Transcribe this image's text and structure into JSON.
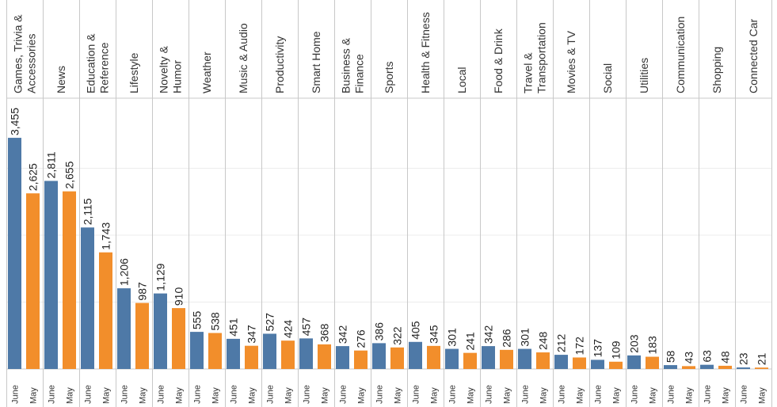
{
  "chart_data": {
    "type": "bar",
    "categories": [
      "Games, Trivia & Accessories",
      "News",
      "Education & Reference",
      "Lifestyle",
      "Novelty & Humor",
      "Weather",
      "Music & Audio",
      "Productivity",
      "Smart Home",
      "Business & Finance",
      "Sports",
      "Health & Fitness",
      "Local",
      "Food & Drink",
      "Travel & Transportation",
      "Movies & TV",
      "Social",
      "Utilities",
      "Communication",
      "Shopping",
      "Connected Car"
    ],
    "category_label_lines": [
      [
        "Games, Trivia &",
        "Accessories"
      ],
      [
        "News"
      ],
      [
        "Education &",
        "Reference"
      ],
      [
        "Lifestyle"
      ],
      [
        "Novelty &",
        "Humor"
      ],
      [
        "Weather"
      ],
      [
        "Music & Audio"
      ],
      [
        "Productivity"
      ],
      [
        "Smart Home"
      ],
      [
        "Business &",
        "Finance"
      ],
      [
        "Sports"
      ],
      [
        "Health & Fitness"
      ],
      [
        "Local"
      ],
      [
        "Food & Drink"
      ],
      [
        "Travel &",
        "Transportation"
      ],
      [
        "Movies & TV"
      ],
      [
        "Social"
      ],
      [
        "Utilities"
      ],
      [
        "Communication"
      ],
      [
        "Shopping"
      ],
      [
        "Connected Car"
      ]
    ],
    "sub_categories": [
      "June",
      "May"
    ],
    "series": [
      {
        "name": "June",
        "color": "#4e79a7",
        "values": [
          3455,
          2811,
          2115,
          1206,
          1129,
          555,
          451,
          527,
          457,
          342,
          386,
          405,
          301,
          342,
          301,
          212,
          137,
          203,
          58,
          63,
          23
        ],
        "labels": [
          "3,455",
          "2,811",
          "2,115",
          "1,206",
          "1,129",
          "555",
          "451",
          "527",
          "457",
          "342",
          "386",
          "405",
          "301",
          "342",
          "301",
          "212",
          "137",
          "203",
          "58",
          "63",
          "23"
        ]
      },
      {
        "name": "May",
        "color": "#f28e2b",
        "values": [
          2625,
          2655,
          1743,
          987,
          910,
          538,
          347,
          424,
          368,
          276,
          322,
          345,
          241,
          286,
          248,
          172,
          109,
          183,
          43,
          48,
          21
        ],
        "labels": [
          "2,625",
          "2,655",
          "1,743",
          "987",
          "910",
          "538",
          "347",
          "424",
          "368",
          "276",
          "322",
          "345",
          "241",
          "286",
          "248",
          "172",
          "109",
          "183",
          "43",
          "48",
          "21"
        ]
      }
    ],
    "ylim": [
      0,
      4000
    ],
    "grid": true,
    "legend": "none",
    "gridline_color": "#ececec",
    "divider_color": "#c8c8c8"
  }
}
